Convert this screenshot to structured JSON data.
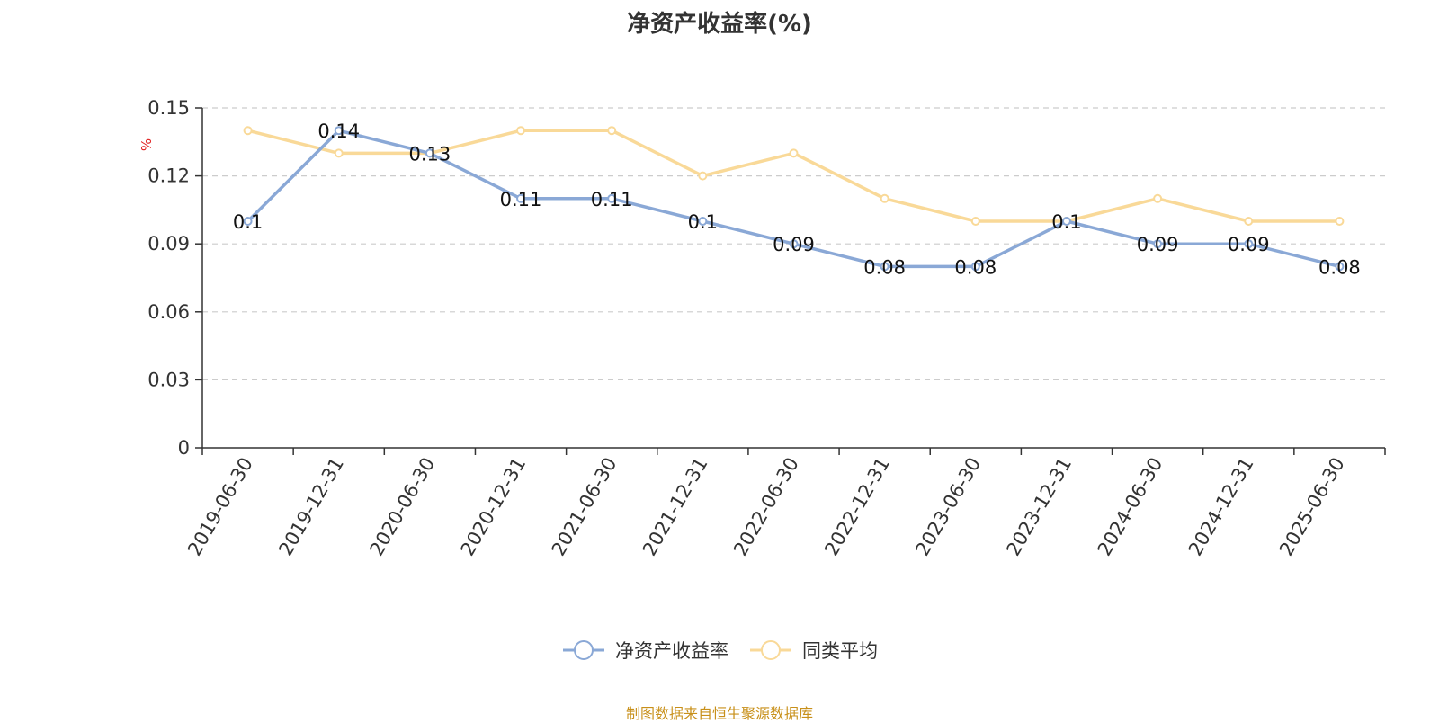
{
  "title": "净资产收益率(%)",
  "footer": "制图数据来自恒生聚源数据库",
  "chart_data": {
    "type": "line",
    "ylabel": "%",
    "ylim": [
      0,
      0.15
    ],
    "yticks": [
      "0",
      "0.03",
      "0.06",
      "0.09",
      "0.12",
      "0.15"
    ],
    "grid": true,
    "legend_position": "bottom-center",
    "categories": [
      "2019-06-30",
      "2019-12-31",
      "2020-06-30",
      "2020-12-31",
      "2021-06-30",
      "2021-12-31",
      "2022-06-30",
      "2022-12-31",
      "2023-06-30",
      "2023-12-31",
      "2024-06-30",
      "2024-12-31",
      "2025-06-30"
    ],
    "series": [
      {
        "name": "净资产收益率",
        "color": "#8aa8d6",
        "values": [
          0.1,
          0.14,
          0.13,
          0.11,
          0.11,
          0.1,
          0.09,
          0.08,
          0.08,
          0.1,
          0.09,
          0.09,
          0.08
        ],
        "labels": [
          "0.1",
          "0.14",
          "0.13",
          "0.11",
          "0.11",
          "0.1",
          "0.09",
          "0.08",
          "0.08",
          "0.1",
          "0.09",
          "0.09",
          "0.08"
        ]
      },
      {
        "name": "同类平均",
        "color": "#f9d998",
        "values": [
          0.14,
          0.13,
          0.13,
          0.14,
          0.14,
          0.12,
          0.13,
          0.11,
          0.1,
          0.1,
          0.11,
          0.1,
          0.1
        ]
      }
    ]
  }
}
